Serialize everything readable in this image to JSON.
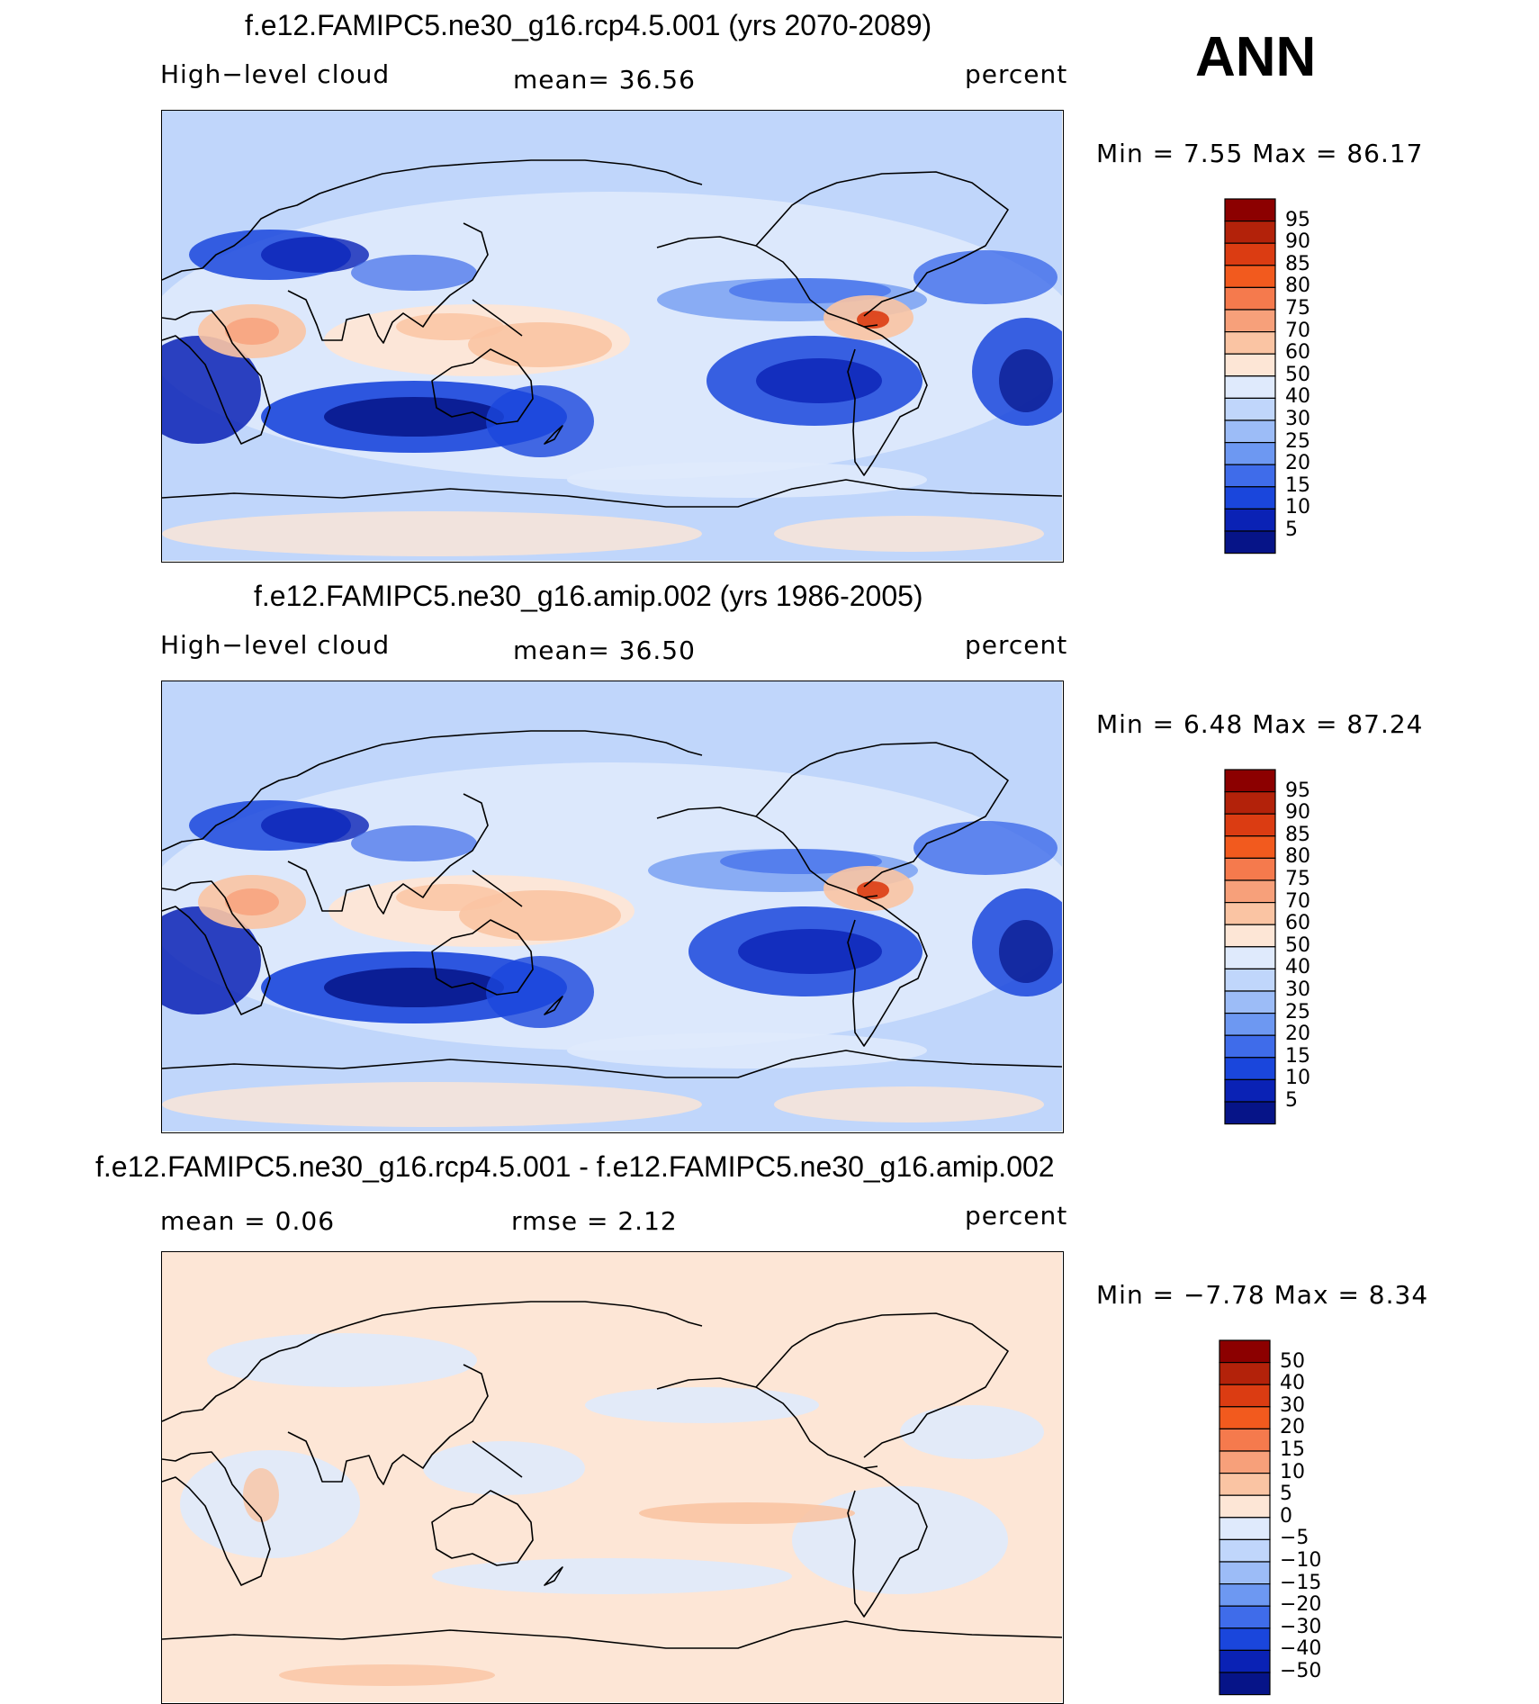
{
  "season": "ANN",
  "panels": [
    {
      "title": "f.e12.FAMIPC5.ne30_g16.rcp4.5.001 (yrs 2070-2089)",
      "left_label": "High−level cloud",
      "mid_label": "mean=   36.56",
      "right_label": "percent",
      "minmax": "Min  =     7.55  Max  =    86.17",
      "colorbar": {
        "levels": [
          "95",
          "90",
          "85",
          "80",
          "75",
          "70",
          "60",
          "50",
          "40",
          "30",
          "25",
          "20",
          "15",
          "10",
          "5"
        ],
        "colors": [
          "#8c0000",
          "#b3220a",
          "#db3c12",
          "#f25a1e",
          "#f57a4d",
          "#f7a07a",
          "#fac4a3",
          "#fde6d6",
          "#dfeafc",
          "#c0d6fb",
          "#9cbcf7",
          "#6d98f2",
          "#3f6cea",
          "#1a46dc",
          "#0a22b5",
          "#061488"
        ]
      },
      "field": "absolute"
    },
    {
      "title": "f.e12.FAMIPC5.ne30_g16.amip.002 (yrs 1986-2005)",
      "left_label": "High−level cloud",
      "mid_label": "mean=   36.50",
      "right_label": "percent",
      "minmax": "Min  =     6.48  Max  =    87.24",
      "colorbar": {
        "levels": [
          "95",
          "90",
          "85",
          "80",
          "75",
          "70",
          "60",
          "50",
          "40",
          "30",
          "25",
          "20",
          "15",
          "10",
          "5"
        ],
        "colors": [
          "#8c0000",
          "#b3220a",
          "#db3c12",
          "#f25a1e",
          "#f57a4d",
          "#f7a07a",
          "#fac4a3",
          "#fde6d6",
          "#dfeafc",
          "#c0d6fb",
          "#9cbcf7",
          "#6d98f2",
          "#3f6cea",
          "#1a46dc",
          "#0a22b5",
          "#061488"
        ]
      },
      "field": "absolute"
    },
    {
      "title": "f.e12.FAMIPC5.ne30_g16.rcp4.5.001 - f.e12.FAMIPC5.ne30_g16.amip.002",
      "left_label": "mean  =     0.06",
      "mid_label": "rmse  =     2.12",
      "right_label": "percent",
      "minmax": "Min  =   −7.78  Max  =      8.34",
      "colorbar": {
        "levels": [
          "50",
          "40",
          "30",
          "20",
          "15",
          "10",
          "5",
          "0",
          "−5",
          "−10",
          "−15",
          "−20",
          "−30",
          "−40",
          "−50"
        ],
        "colors": [
          "#8c0000",
          "#b3220a",
          "#db3c12",
          "#f25a1e",
          "#f57a4d",
          "#f7a07a",
          "#fac4a3",
          "#fde6d6",
          "#dfeafc",
          "#c0d6fb",
          "#9cbcf7",
          "#6d98f2",
          "#3f6cea",
          "#1a46dc",
          "#0a22b5",
          "#061488"
        ]
      },
      "field": "difference"
    }
  ]
}
